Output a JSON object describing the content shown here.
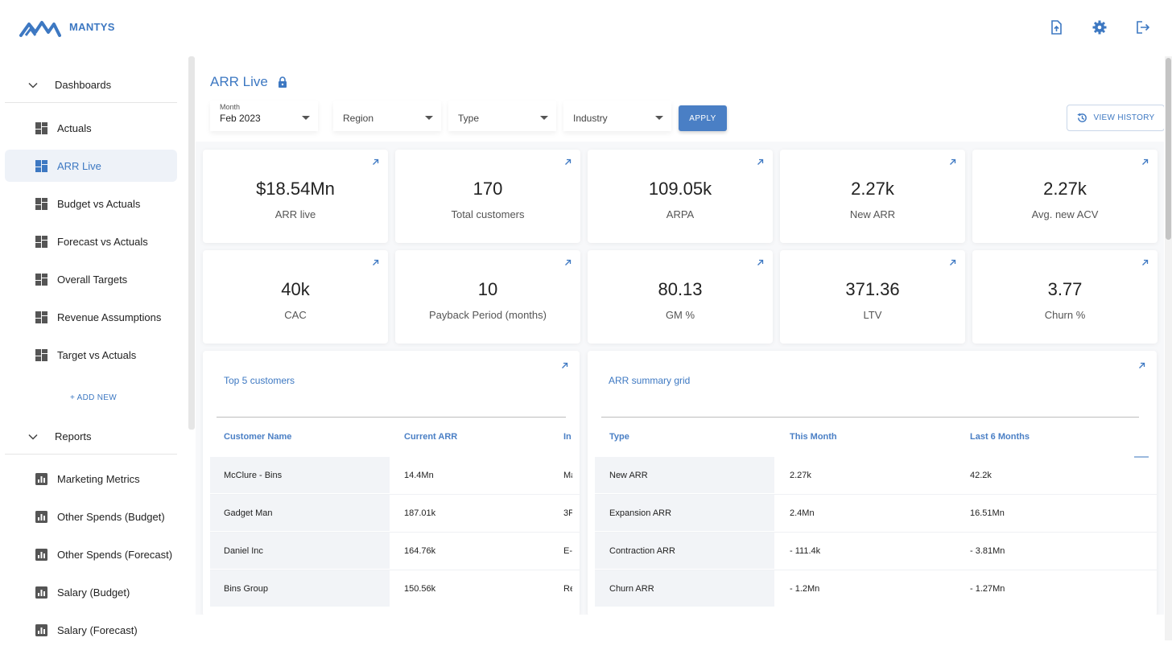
{
  "brand": {
    "name": "MANTYS"
  },
  "colors": {
    "accent": "#3d78c2",
    "button": "#4a7fc5",
    "active_bg": "#eef2f8"
  },
  "topbar": {
    "icons": [
      "file-upload-icon",
      "gear-icon",
      "logout-icon"
    ]
  },
  "sidebar": {
    "sections": [
      {
        "label": "Dashboards",
        "items": [
          "Actuals",
          "ARR Live",
          "Budget vs Actuals",
          "Forecast vs Actuals",
          "Overall Targets",
          "Revenue Assumptions",
          "Target vs Actuals"
        ],
        "active": "ARR Live",
        "add_new": "+ ADD NEW"
      },
      {
        "label": "Reports",
        "items": [
          "Marketing Metrics",
          "Other Spends (Budget)",
          "Other Spends (Forecast)",
          "Salary (Budget)",
          "Salary (Forecast)"
        ]
      }
    ]
  },
  "page": {
    "title": "ARR Live",
    "title_icon": "lock-icon"
  },
  "filters": {
    "month": {
      "label": "Month",
      "value": "Feb 2023"
    },
    "region": {
      "placeholder": "Region"
    },
    "type": {
      "placeholder": "Type"
    },
    "industry": {
      "placeholder": "Industry"
    },
    "apply": "APPLY",
    "view_history": "VIEW HISTORY"
  },
  "kpis": [
    {
      "value": "$18.54Mn",
      "label": "ARR live"
    },
    {
      "value": "170",
      "label": "Total customers"
    },
    {
      "value": "109.05k",
      "label": "ARPA"
    },
    {
      "value": "2.27k",
      "label": "New ARR"
    },
    {
      "value": "2.27k",
      "label": "Avg. new ACV"
    },
    {
      "value": "40k",
      "label": "CAC"
    },
    {
      "value": "10",
      "label": "Payback Period (months)"
    },
    {
      "value": "80.13",
      "label": "GM %"
    },
    {
      "value": "371.36",
      "label": "LTV"
    },
    {
      "value": "3.77",
      "label": "Churn %"
    }
  ],
  "top_customers": {
    "title": "Top 5 customers",
    "columns": [
      "Customer Name",
      "Current ARR",
      "In"
    ],
    "rows": [
      [
        "McClure - Bins",
        "14.4Mn",
        "Ma"
      ],
      [
        "Gadget Man",
        "187.01k",
        "3P"
      ],
      [
        "Daniel Inc",
        "164.76k",
        "E-"
      ],
      [
        "Bins Group",
        "150.56k",
        "Re"
      ]
    ]
  },
  "arr_summary": {
    "title": "ARR summary grid",
    "columns": [
      "Type",
      "This Month",
      "Last 6 Months"
    ],
    "rows": [
      [
        "New ARR",
        "2.27k",
        "42.2k"
      ],
      [
        "Expansion ARR",
        "2.4Mn",
        "16.51Mn"
      ],
      [
        "Contraction ARR",
        "- 111.4k",
        "- 3.81Mn"
      ],
      [
        "Churn ARR",
        "- 1.2Mn",
        "- 1.27Mn"
      ]
    ]
  }
}
